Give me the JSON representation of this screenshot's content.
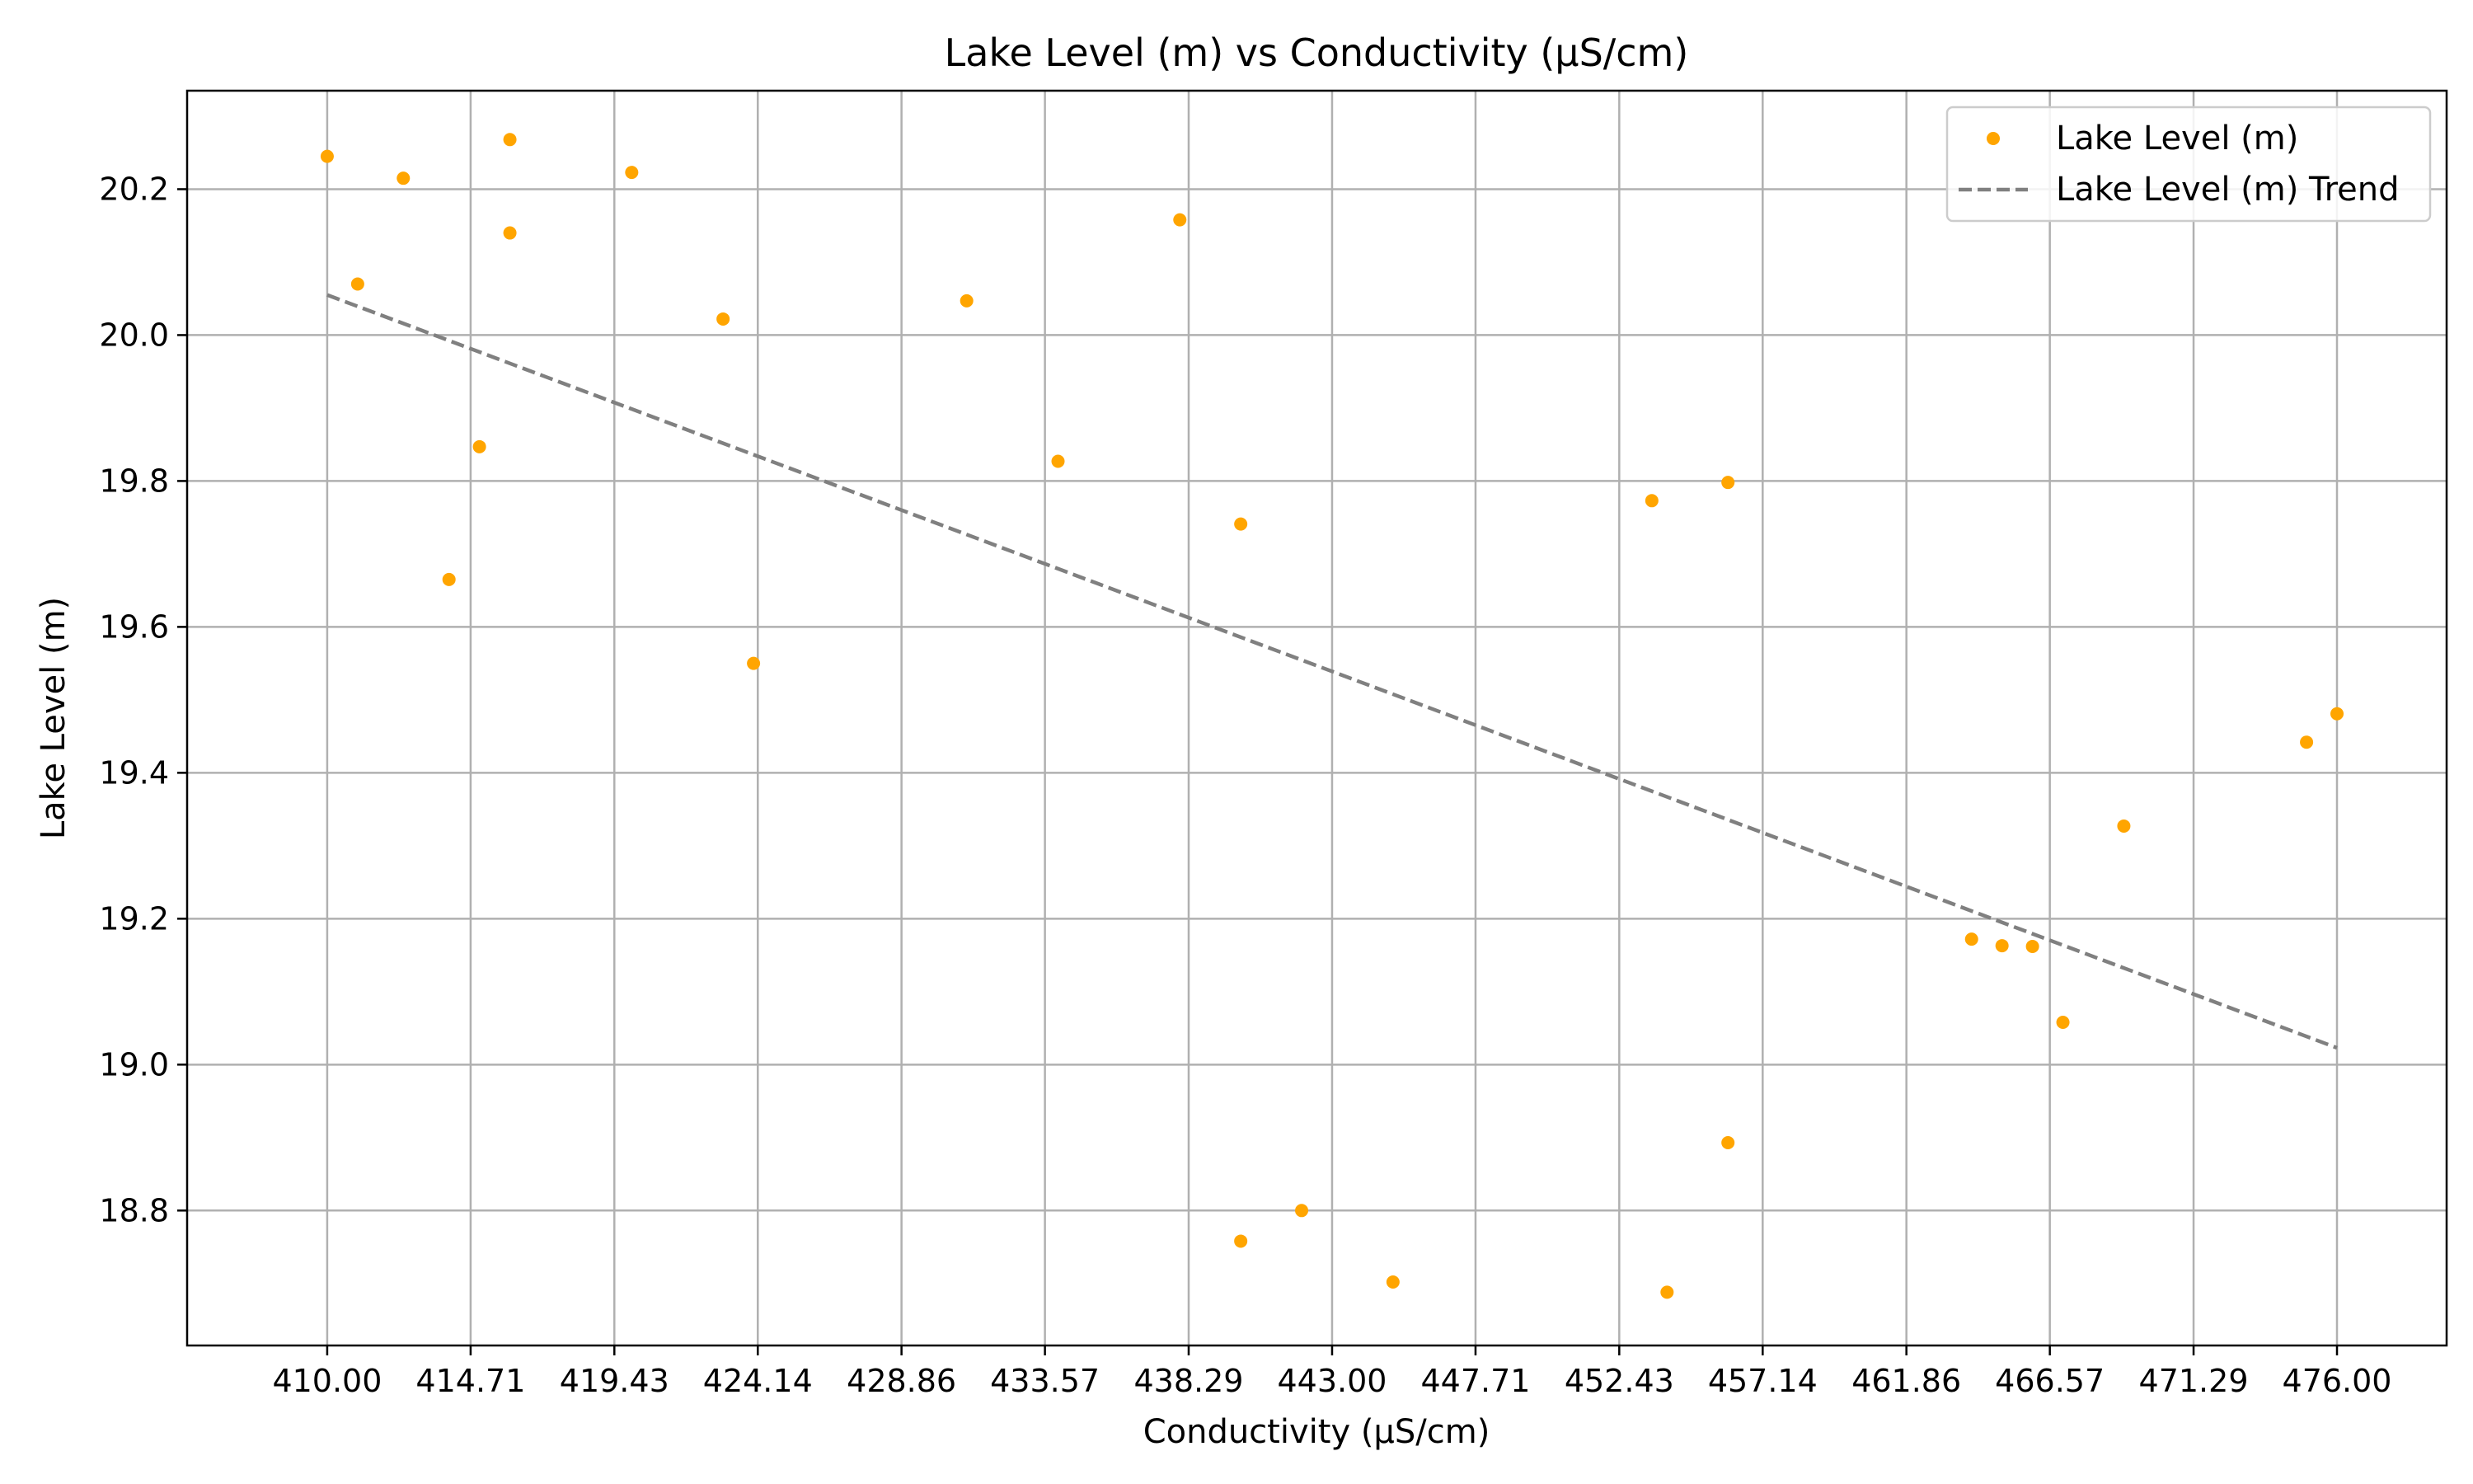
{
  "chart_data": {
    "type": "scatter",
    "title": "Lake Level (m) vs Conductivity (µS/cm)",
    "xlabel": "Conductivity (µS/cm)",
    "ylabel": "Lake Level (m)",
    "xlim": [
      405.4,
      479.6
    ],
    "ylim": [
      18.615,
      20.335
    ],
    "x_ticks": [
      "410.00",
      "414.71",
      "419.43",
      "424.14",
      "428.86",
      "433.57",
      "438.29",
      "443.00",
      "447.71",
      "452.43",
      "457.14",
      "461.86",
      "466.57",
      "471.29",
      "476.00"
    ],
    "y_ticks": [
      "18.8",
      "19.0",
      "19.2",
      "19.4",
      "19.6",
      "19.8",
      "20.0",
      "20.2"
    ],
    "grid": true,
    "legend_position": "top-right",
    "series": [
      {
        "name": "Lake Level (m)",
        "kind": "scatter",
        "color": "#ffa500",
        "x": [
          410.0,
          411.0,
          412.5,
          414.0,
          415.0,
          416.0,
          416.0,
          420.0,
          423.0,
          424.0,
          431.0,
          434.0,
          438.0,
          440.0,
          440.0,
          442.0,
          445.0,
          453.5,
          454.0,
          456.0,
          456.0,
          464.0,
          465.0,
          466.0,
          467.0,
          469.0,
          475.0,
          476.0
        ],
        "y": [
          20.245,
          20.07,
          20.215,
          19.665,
          19.847,
          20.268,
          20.14,
          20.223,
          20.022,
          19.55,
          20.047,
          19.827,
          20.158,
          19.741,
          18.758,
          18.8,
          18.702,
          19.773,
          18.688,
          19.798,
          18.893,
          19.172,
          19.163,
          19.162,
          19.058,
          19.327,
          19.442,
          19.481
        ]
      },
      {
        "name": "Lake Level (m) Trend",
        "kind": "line",
        "color": "#808080",
        "dash": true,
        "x": [
          410.0,
          476.0
        ],
        "y": [
          20.055,
          19.023
        ]
      }
    ]
  }
}
